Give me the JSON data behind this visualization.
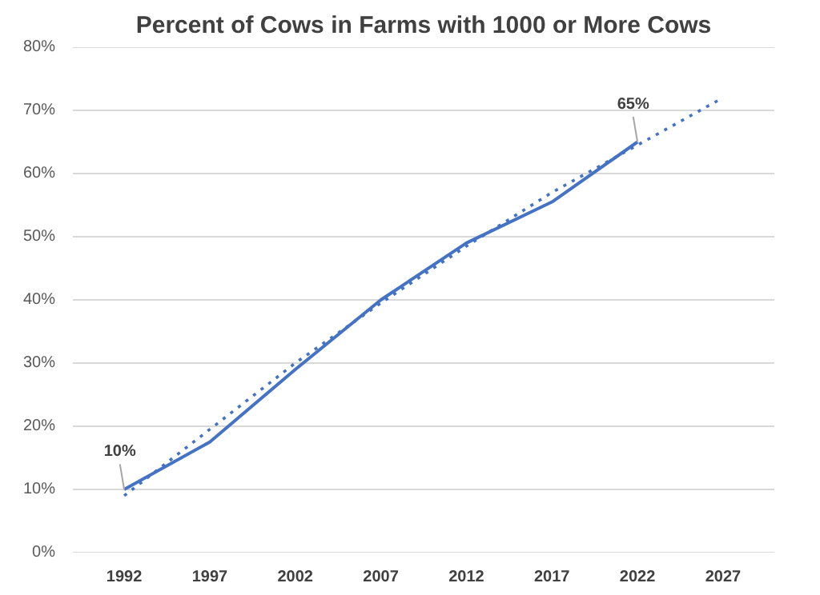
{
  "chart_data": {
    "type": "line",
    "title": "Percent of Cows in Farms with 1000 or More Cows",
    "categories": [
      "1992",
      "1997",
      "2002",
      "2007",
      "2012",
      "2017",
      "2022",
      "2027"
    ],
    "series": [
      {
        "color": "#4472c4",
        "values": [
          10,
          17.5,
          29,
          40,
          49,
          55.5,
          65,
          null
        ],
        "line_style": "solid"
      },
      {
        "color": "#4472c4",
        "values": [
          9,
          19.5,
          30,
          39.5,
          48.5,
          57,
          64.5,
          72
        ],
        "line_style": "dotted"
      }
    ],
    "ylim": [
      0,
      80
    ],
    "yticks": [
      {
        "value": 0,
        "label": "0%"
      },
      {
        "value": 10,
        "label": "10%"
      },
      {
        "value": 20,
        "label": "20%"
      },
      {
        "value": 30,
        "label": "30%"
      },
      {
        "value": 40,
        "label": "40%"
      },
      {
        "value": 50,
        "label": "50%"
      },
      {
        "value": 60,
        "label": "60%"
      },
      {
        "value": 70,
        "label": "70%"
      },
      {
        "value": 80,
        "label": "80%"
      }
    ],
    "grid": "y",
    "marker": "none",
    "annotations": [
      {
        "text": "10%",
        "x": "1992",
        "y": 10
      },
      {
        "text": "65%",
        "x": "2022",
        "y": 65
      }
    ]
  }
}
